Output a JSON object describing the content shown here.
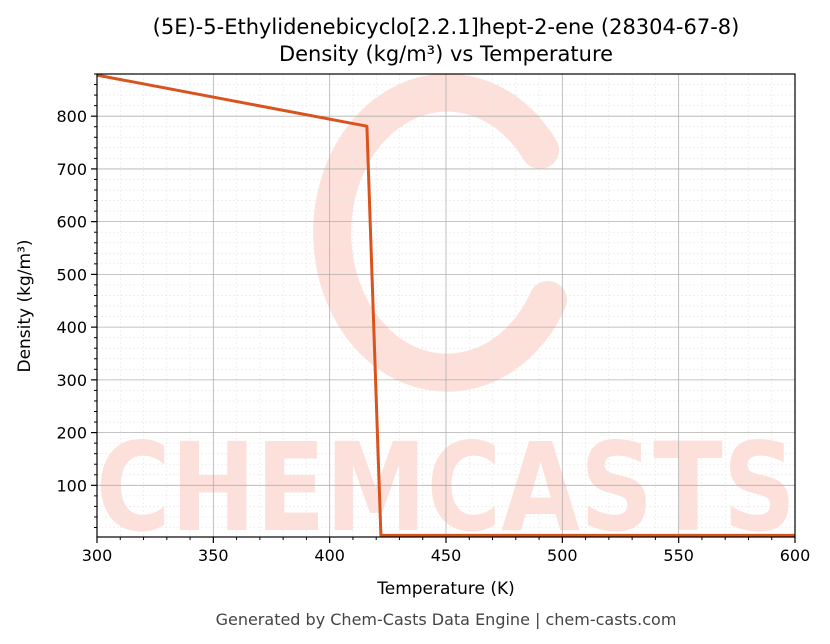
{
  "chart_data": {
    "type": "line",
    "title": "(5E)-5-Ethylidenebicyclo[2.2.1]hept-2-ene (28304-67-8)",
    "subtitle": "Density (kg/m³) vs Temperature",
    "xlabel": "Temperature (K)",
    "ylabel": "Density (kg/m³)",
    "xlim": [
      300,
      600
    ],
    "ylim": [
      2,
      880
    ],
    "xticks": [
      300,
      350,
      400,
      450,
      500,
      550,
      600
    ],
    "yticks": [
      100,
      200,
      300,
      400,
      500,
      600,
      700,
      800
    ],
    "grid": true,
    "series": [
      {
        "x": [
          300,
          416,
          422,
          600
        ],
        "y": [
          878,
          781,
          5,
          5
        ],
        "color": "#d9531e"
      }
    ]
  },
  "watermark": {
    "text": "CHEMCASTS"
  },
  "footer": "Generated by Chem-Casts Data Engine | chem-casts.com"
}
